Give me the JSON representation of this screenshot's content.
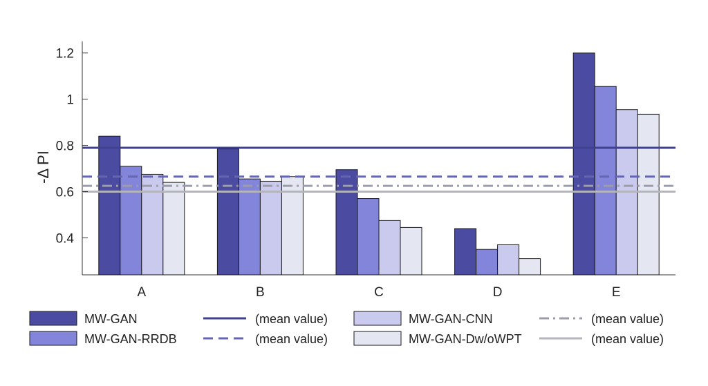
{
  "chart_data": {
    "type": "bar",
    "ylabel": "-Δ PI",
    "ylim": [
      0.24,
      1.25
    ],
    "yticks": [
      0.4,
      0.6,
      0.8,
      1,
      1.2
    ],
    "ytick_labels": [
      "0.4",
      "0.6",
      "0.8",
      "1",
      "1.2"
    ],
    "categories": [
      "A",
      "B",
      "C",
      "D",
      "E"
    ],
    "series": [
      {
        "name": "MW-GAN",
        "color": "#4a4ba1",
        "values": [
          0.84,
          0.785,
          0.695,
          0.44,
          1.2
        ],
        "mean": 0.79,
        "mean_style": "solid",
        "mean_color": "#3f408f"
      },
      {
        "name": "MW-GAN-RRDB",
        "color": "#8285d9",
        "values": [
          0.71,
          0.655,
          0.57,
          0.35,
          1.055
        ],
        "mean": 0.665,
        "mean_style": "dashed",
        "mean_color": "#6466b2"
      },
      {
        "name": "MW-GAN-CNN",
        "color": "#c9caee",
        "values": [
          0.675,
          0.645,
          0.475,
          0.37,
          0.955
        ],
        "mean": 0.625,
        "mean_style": "dashdot",
        "mean_color": "#9c9cab"
      },
      {
        "name": "MW-GAN-Dw/oWPT",
        "color": "#e4e6f1",
        "values": [
          0.64,
          0.665,
          0.445,
          0.31,
          0.935
        ],
        "mean": 0.6,
        "mean_style": "solid",
        "mean_color": "#b4b4bc"
      }
    ],
    "mean_label": "(mean value)",
    "legend_position": "bottom",
    "grid": false
  }
}
